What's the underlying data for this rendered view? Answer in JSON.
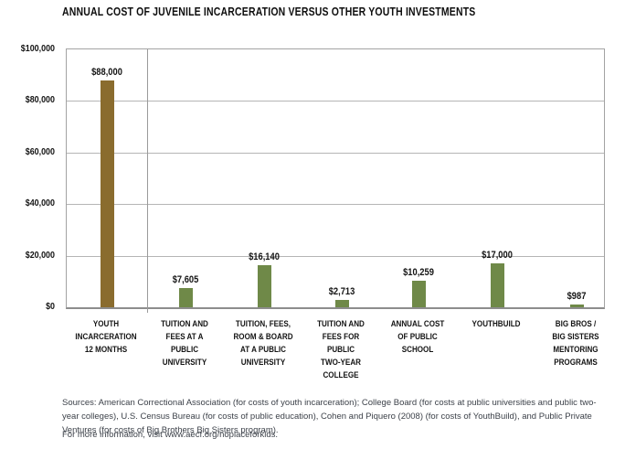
{
  "title": "ANNUAL COST OF JUVENILE INCARCERATION VERSUS OTHER YOUTH INVESTMENTS",
  "colors": {
    "incarceration_bar": "#8a6c2e",
    "investment_bar": "#6f8948",
    "gridline": "#b5b5b5",
    "plot_border": "#a3a3a3",
    "axis_line": "#8d8d8d",
    "text": "#141414",
    "footer_text": "#3c4149"
  },
  "chart_data": {
    "type": "bar",
    "title": "ANNUAL COST OF JUVENILE INCARCERATION VERSUS OTHER YOUTH INVESTMENTS",
    "xlabel": "",
    "ylabel": "",
    "ylim": [
      0,
      100000
    ],
    "ytick_interval": 20000,
    "yticks": [
      "$100,000",
      "$80,000",
      "$60,000",
      "$40,000",
      "$20,000",
      "$0"
    ],
    "grid": true,
    "separator_after_first_category": true,
    "categories": [
      "YOUTH INCARCERATION 12 MONTHS",
      "TUITION AND FEES AT A PUBLIC UNIVERSITY",
      "TUITION, FEES, ROOM & BOARD AT A PUBLIC UNIVERSITY",
      "TUITION AND FEES FOR PUBLIC TWO-YEAR COLLEGE",
      "ANNUAL COST OF PUBLIC SCHOOL",
      "YOUTHBUILD",
      "BIG BROS / BIG SISTERS MENTORING PROGRAMS"
    ],
    "category_label_lines": [
      [
        "YOUTH",
        "INCARCERATION",
        "12 MONTHS"
      ],
      [
        "TUITION AND",
        "FEES AT A",
        "PUBLIC",
        "UNIVERSITY"
      ],
      [
        "TUITION, FEES,",
        "ROOM & BOARD",
        "AT A PUBLIC",
        "UNIVERSITY"
      ],
      [
        "TUITION AND",
        "FEES FOR",
        "PUBLIC",
        "TWO-YEAR",
        "COLLEGE"
      ],
      [
        "ANNUAL COST",
        "OF PUBLIC",
        "SCHOOL"
      ],
      [
        "YOUTHBUILD"
      ],
      [
        "BIG BROS /",
        "BIG SISTERS",
        "MENTORING",
        "PROGRAMS"
      ]
    ],
    "values": [
      88000,
      7605,
      16140,
      2713,
      10259,
      17000,
      987
    ],
    "value_labels": [
      "$88,000",
      "$7,605",
      "$16,140",
      "$2,713",
      "$10,259",
      "$17,000",
      "$987"
    ],
    "bar_colors": [
      "#8a6c2e",
      "#6f8948",
      "#6f8948",
      "#6f8948",
      "#6f8948",
      "#6f8948",
      "#6f8948"
    ]
  },
  "footer": {
    "sources_text": "Sources: American Correctional Association (for costs of youth incarceration); College Board (for costs at public universities and public two-year colleges), U.S. Census Bureau (for costs of public education), Cohen and Piquero (2008) (for costs of YouthBuild), and Public Private Ventures (for costs of Big Brothers Big Sisters program).",
    "more_info_text": "For more information, visit www.aecf.org/noplaceforkids."
  }
}
